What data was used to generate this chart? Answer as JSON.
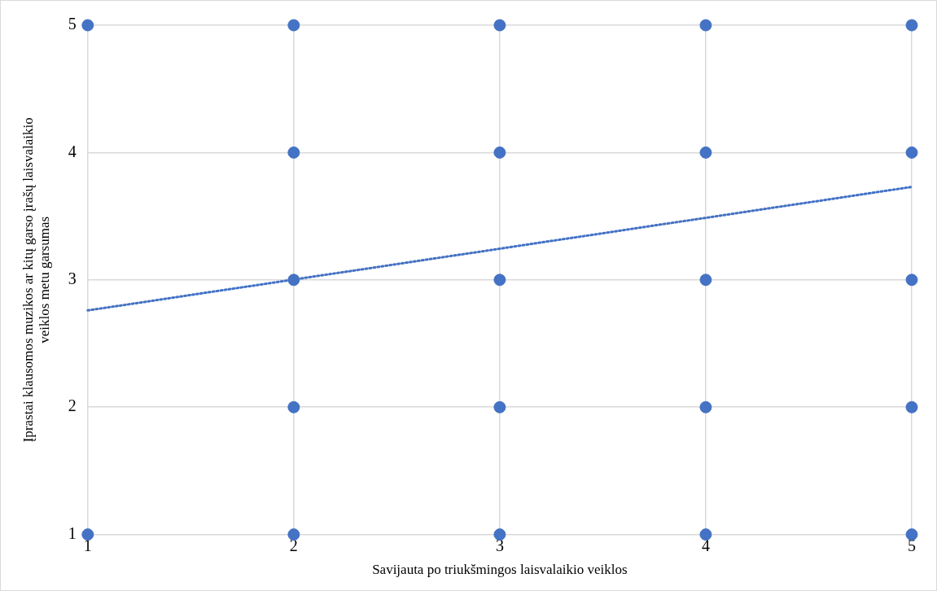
{
  "chart_data": {
    "type": "scatter",
    "xlabel": "Savijauta po triukšmingos laisvalaikio veiklos",
    "ylabel": "Įprastai klausomos muzikos ar kitų garso įrašų laisvalaikio veiklos metu garsumas",
    "xlim": [
      1,
      5
    ],
    "ylim": [
      1,
      5
    ],
    "xticks": [
      1,
      2,
      3,
      4,
      5
    ],
    "yticks": [
      1,
      2,
      3,
      4,
      5
    ],
    "grid": true,
    "legend": false,
    "marker": "circle",
    "series": [
      {
        "type": "scatter",
        "color": "#4472c4",
        "x": [
          1,
          1,
          2,
          2,
          2,
          2,
          2,
          3,
          3,
          3,
          3,
          3,
          4,
          4,
          4,
          4,
          4,
          5,
          5,
          5,
          5,
          5
        ],
        "values": [
          5,
          1,
          5,
          4,
          3,
          2,
          1,
          5,
          4,
          3,
          2,
          1,
          5,
          4,
          3,
          2,
          1,
          5,
          4,
          3,
          2,
          1
        ]
      },
      {
        "type": "line",
        "color": "#4472c4",
        "line_style": "dotted",
        "marker": "none",
        "x": [
          1,
          5
        ],
        "values": [
          2.76,
          3.73
        ]
      }
    ]
  }
}
